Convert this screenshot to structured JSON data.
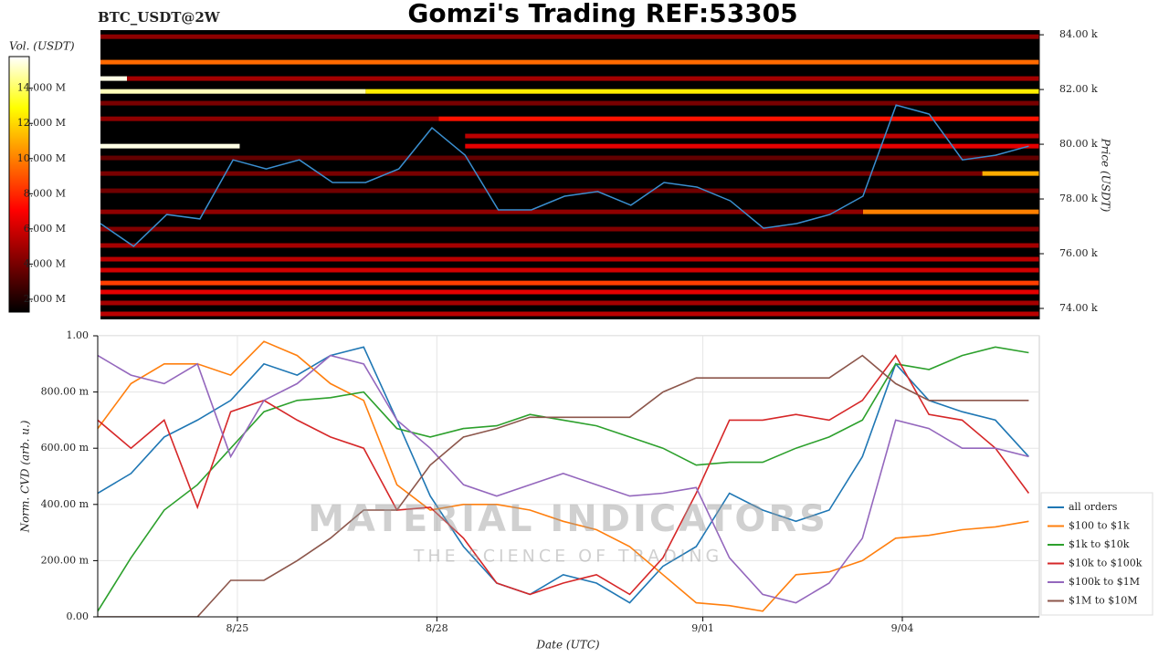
{
  "chart_data": [
    {
      "type": "heatmap",
      "title": "Gomzi's Trading REF:53305",
      "subtitle": "BTC_USDT@2W",
      "ylabel": "Price (USDT)",
      "colorbar_label": "Vol. (USDT)",
      "xlim": [
        0,
        14.16
      ],
      "ylim": [
        73600,
        84170
      ],
      "yticks": [
        {
          "value": 74000,
          "label": "74.00 k"
        },
        {
          "value": 76000,
          "label": "76.00 k"
        },
        {
          "value": 78000,
          "label": "78.00 k"
        },
        {
          "value": 80000,
          "label": "80.00 k"
        },
        {
          "value": 82000,
          "label": "82.00 k"
        },
        {
          "value": 84000,
          "label": "84.00 k"
        }
      ],
      "clim": [
        1270000,
        15800000
      ],
      "cticks": [
        {
          "value": 2000000,
          "label": "2.000 M"
        },
        {
          "value": 4000000,
          "label": "4.000 M"
        },
        {
          "value": 6000000,
          "label": "6.000 M"
        },
        {
          "value": 8000000,
          "label": "8.000 M"
        },
        {
          "value": 10000000,
          "label": "10.000 M"
        },
        {
          "value": 12000000,
          "label": "12.000 M"
        },
        {
          "value": 14000000,
          "label": "14.000 M"
        }
      ],
      "bands": [
        {
          "price": 83930,
          "x0": 0,
          "x1": 14.16,
          "volume": 4500000
        },
        {
          "price": 83000,
          "x0": 0,
          "x1": 14.16,
          "volume": 9500000
        },
        {
          "price": 82400,
          "x0": 0,
          "x1": 0.4,
          "volume": 15500000
        },
        {
          "price": 82400,
          "x0": 0.4,
          "x1": 14.16,
          "volume": 5000000
        },
        {
          "price": 81930,
          "x0": 0,
          "x1": 4,
          "volume": 15000000
        },
        {
          "price": 81930,
          "x0": 4,
          "x1": 14.16,
          "volume": 12500000
        },
        {
          "price": 81500,
          "x0": 0,
          "x1": 14.16,
          "volume": 4000000
        },
        {
          "price": 80930,
          "x0": 5.1,
          "x1": 14.16,
          "volume": 7500000
        },
        {
          "price": 80930,
          "x0": 0,
          "x1": 5.1,
          "volume": 4500000
        },
        {
          "price": 80300,
          "x0": 5.5,
          "x1": 14.16,
          "volume": 5500000
        },
        {
          "price": 79930,
          "x0": 0,
          "x1": 2.1,
          "volume": 15500000
        },
        {
          "price": 79930,
          "x0": 5.5,
          "x1": 14.16,
          "volume": 6500000
        },
        {
          "price": 79500,
          "x0": 0,
          "x1": 14.16,
          "volume": 3500000
        },
        {
          "price": 78930,
          "x0": 13.3,
          "x1": 14.16,
          "volume": 11000000
        },
        {
          "price": 78930,
          "x0": 0,
          "x1": 13.3,
          "volume": 4000000
        },
        {
          "price": 78300,
          "x0": 0,
          "x1": 14.16,
          "volume": 3800000
        },
        {
          "price": 77530,
          "x0": 11.5,
          "x1": 14.16,
          "volume": 10000000
        },
        {
          "price": 77530,
          "x0": 0,
          "x1": 11.5,
          "volume": 4500000
        },
        {
          "price": 76900,
          "x0": 0,
          "x1": 14.16,
          "volume": 4200000
        },
        {
          "price": 76300,
          "x0": 0,
          "x1": 14.16,
          "volume": 5000000
        },
        {
          "price": 75800,
          "x0": 0,
          "x1": 14.16,
          "volume": 5500000
        },
        {
          "price": 75400,
          "x0": 0,
          "x1": 14.16,
          "volume": 6000000
        },
        {
          "price": 74930,
          "x0": 0,
          "x1": 14.16,
          "volume": 8500000
        },
        {
          "price": 74600,
          "x0": 0,
          "x1": 14.16,
          "volume": 6500000
        },
        {
          "price": 74200,
          "x0": 0,
          "x1": 14.16,
          "volume": 5000000
        },
        {
          "price": 73800,
          "x0": 0,
          "x1": 14.16,
          "volume": 5500000
        }
      ],
      "x": [
        0,
        0.5,
        1,
        1.5,
        2,
        2.5,
        3,
        3.5,
        4,
        4.5,
        5,
        5.5,
        6,
        6.5,
        7,
        7.5,
        8,
        8.5,
        9,
        9.5,
        10,
        10.5,
        11,
        11.5,
        12,
        12.5,
        13,
        13.5,
        14
      ],
      "price": {
        "color": "#3a8fd0",
        "values": [
          77100,
          76270,
          77430,
          77270,
          79430,
          79100,
          79430,
          78600,
          78600,
          79100,
          80600,
          79600,
          77600,
          77600,
          78100,
          78270,
          77770,
          78600,
          78430,
          77930,
          76930,
          77100,
          77430,
          78100,
          81430,
          81100,
          79430,
          79600,
          79930
        ]
      }
    },
    {
      "type": "line",
      "ylabel": "Norm. CVD (arb. u.)",
      "xlabel": "Date (UTC)",
      "grid": true,
      "legend": "lower right",
      "watermark": {
        "title": "MATERIAL INDICATORS",
        "subtitle": "THE SCIENCE OF TRADING"
      },
      "xlim": [
        0,
        14.16
      ],
      "xticks": [
        {
          "value": 2.1,
          "label": "8/25"
        },
        {
          "value": 5.1,
          "label": "8/28"
        },
        {
          "value": 9.1,
          "label": "9/01"
        },
        {
          "value": 12.1,
          "label": "9/04"
        }
      ],
      "ylim": [
        0,
        1
      ],
      "yticks": [
        {
          "value": 0,
          "label": "0.00"
        },
        {
          "value": 0.2,
          "label": "200.00 m"
        },
        {
          "value": 0.4,
          "label": "400.00 m"
        },
        {
          "value": 0.6,
          "label": "600.00 m"
        },
        {
          "value": 0.8,
          "label": "800.00 m"
        },
        {
          "value": 1,
          "label": "1.00"
        }
      ],
      "x": [
        0,
        0.5,
        1,
        1.5,
        2,
        2.5,
        3,
        3.5,
        4,
        4.5,
        5,
        5.5,
        6,
        6.5,
        7,
        7.5,
        8,
        8.5,
        9,
        9.5,
        10,
        10.5,
        11,
        11.5,
        12,
        12.5,
        13,
        13.5,
        14
      ],
      "series": [
        {
          "name": "all orders",
          "color": "#1f77b4",
          "values": [
            0.44,
            0.51,
            0.64,
            0.7,
            0.77,
            0.9,
            0.86,
            0.93,
            0.96,
            0.7,
            0.43,
            0.25,
            0.12,
            0.08,
            0.15,
            0.12,
            0.05,
            0.18,
            0.25,
            0.44,
            0.38,
            0.34,
            0.38,
            0.57,
            0.9,
            0.77,
            0.73,
            0.7,
            0.57
          ]
        },
        {
          "name": "$100 to $1k",
          "color": "#ff7f0e",
          "values": [
            0.67,
            0.83,
            0.9,
            0.9,
            0.86,
            0.98,
            0.93,
            0.83,
            0.77,
            0.47,
            0.38,
            0.4,
            0.4,
            0.38,
            0.34,
            0.31,
            0.25,
            0.15,
            0.05,
            0.04,
            0.02,
            0.15,
            0.16,
            0.2,
            0.28,
            0.29,
            0.31,
            0.32,
            0.34
          ]
        },
        {
          "name": "$1k to $10k",
          "color": "#2ca02c",
          "values": [
            0.02,
            0.21,
            0.38,
            0.47,
            0.6,
            0.73,
            0.77,
            0.78,
            0.8,
            0.67,
            0.64,
            0.67,
            0.68,
            0.72,
            0.7,
            0.68,
            0.64,
            0.6,
            0.54,
            0.55,
            0.55,
            0.6,
            0.64,
            0.7,
            0.9,
            0.88,
            0.93,
            0.96,
            0.94
          ]
        },
        {
          "name": "$10k to $100k",
          "color": "#d62728",
          "values": [
            0.7,
            0.6,
            0.7,
            0.39,
            0.73,
            0.77,
            0.7,
            0.64,
            0.6,
            0.38,
            0.39,
            0.28,
            0.12,
            0.08,
            0.12,
            0.15,
            0.08,
            0.21,
            0.44,
            0.7,
            0.7,
            0.72,
            0.7,
            0.77,
            0.93,
            0.72,
            0.7,
            0.6,
            0.44
          ]
        },
        {
          "name": "$100k to $1M",
          "color": "#9467bd",
          "values": [
            0.93,
            0.86,
            0.83,
            0.9,
            0.57,
            0.77,
            0.83,
            0.93,
            0.9,
            0.7,
            0.6,
            0.47,
            0.43,
            0.47,
            0.51,
            0.47,
            0.43,
            0.44,
            0.46,
            0.21,
            0.08,
            0.05,
            0.12,
            0.28,
            0.7,
            0.67,
            0.6,
            0.6,
            0.57
          ]
        },
        {
          "name": "$1M to $10M",
          "color": "#8c564b",
          "values": [
            0,
            0,
            0,
            0,
            0.13,
            0.13,
            0.2,
            0.28,
            0.38,
            0.38,
            0.54,
            0.64,
            0.67,
            0.71,
            0.71,
            0.71,
            0.71,
            0.8,
            0.85,
            0.85,
            0.85,
            0.85,
            0.85,
            0.93,
            0.83,
            0.77,
            0.77,
            0.77,
            0.77
          ]
        }
      ]
    }
  ]
}
